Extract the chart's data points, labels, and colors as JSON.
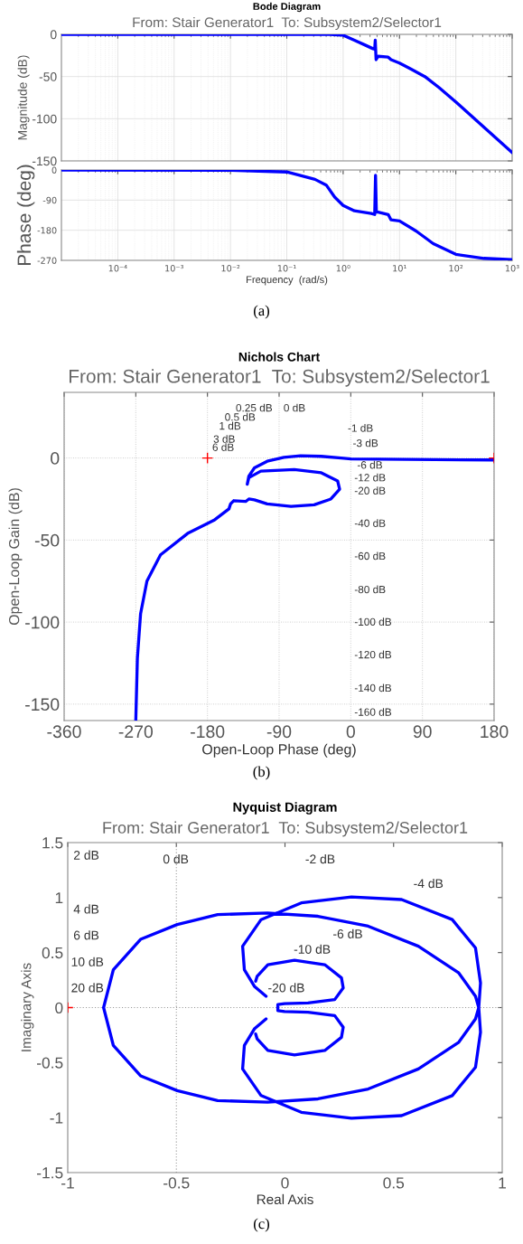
{
  "chart_data": [
    {
      "type": "line",
      "title": "Bode Diagram",
      "subtitle": "From: Stair Generator1  To: Subsystem2/Selector1",
      "ylabel": "Magnitude (dB)",
      "log": "x",
      "grid": true,
      "tick_labels": "y",
      "xlim": [
        1e-05,
        1000
      ],
      "xticks": [
        {
          "value": 0.0001,
          "label": null
        },
        {
          "value": 0.001,
          "label": null
        },
        {
          "value": 0.01,
          "label": null
        },
        {
          "value": 0.1,
          "label": null
        },
        {
          "value": 1,
          "label": null
        },
        {
          "value": 10,
          "label": null
        },
        {
          "value": 100,
          "label": null
        },
        {
          "value": 1000,
          "label": null
        }
      ],
      "ylim": [
        -150,
        0
      ],
      "yticks": [
        -150,
        -100,
        -50,
        0
      ],
      "series": [
        {
          "color": "#0000ff",
          "x": [
            1e-05,
            0.1,
            0.316,
            0.589,
            0.794,
            1,
            1.585,
            2.512,
            3.388,
            3.631,
            3.715,
            3.846,
            4.169,
            6.31,
            7.079,
            10,
            15.85,
            28.18,
            50.12,
            100,
            316.2,
            1000
          ],
          "values": [
            0,
            0,
            0,
            0,
            -0.5,
            -1,
            -7,
            -13,
            -17,
            -17.5,
            -7,
            -30,
            -26,
            -27,
            -30,
            -34,
            -41,
            -50,
            -63,
            -80,
            -110,
            -140
          ]
        }
      ]
    },
    {
      "type": "line",
      "xlabel": "Frequency  (rad/s)",
      "ylabel": "Phase (deg)",
      "log": "x",
      "grid": true,
      "xlim": [
        1e-05,
        1000
      ],
      "xticks": [
        {
          "value": 0.0001,
          "label": "10⁻⁴"
        },
        {
          "value": 0.001,
          "label": "10⁻³"
        },
        {
          "value": 0.01,
          "label": "10⁻²"
        },
        {
          "value": 0.1,
          "label": "10⁻¹"
        },
        {
          "value": 1,
          "label": "10⁰"
        },
        {
          "value": 10,
          "label": "10¹"
        },
        {
          "value": 100,
          "label": "10²"
        },
        {
          "value": 1000,
          "label": "10³"
        }
      ],
      "ylim": [
        -270,
        0
      ],
      "yticks": [
        -270,
        -180,
        -90,
        0
      ],
      "annotations": [
        "(a)"
      ],
      "series": [
        {
          "color": "#0000ff",
          "x": [
            1e-05,
            0.01,
            0.1,
            0.316,
            0.501,
            0.708,
            1,
            1.585,
            3.162,
            3.631,
            3.758,
            3.89,
            4.169,
            6.31,
            7.079,
            10,
            19.95,
            39.81,
            100,
            316.2,
            1000
          ],
          "values": [
            0,
            -1,
            -6,
            -28,
            -45,
            -81,
            -106,
            -122,
            -130,
            -133,
            -16,
            -125,
            -126,
            -133,
            -149,
            -152,
            -183,
            -220,
            -252,
            -264,
            -268
          ]
        }
      ]
    },
    {
      "type": "line",
      "title": "Nichols Chart",
      "subtitle": "From: Stair Generator1  To: Subsystem2/Selector1",
      "xlabel": "Open-Loop Phase (deg)",
      "ylabel": "Open-Loop Gain (dB)",
      "grid": true,
      "xlim": [
        -360,
        180
      ],
      "xticks": [
        -360,
        -270,
        -180,
        -90,
        0,
        90,
        180
      ],
      "ylim": [
        -160,
        40
      ],
      "yticks": [
        -150,
        -100,
        -50,
        0
      ],
      "annotations": [
        "0.25 dB",
        "0 dB",
        "0.5 dB",
        "1 dB",
        "3 dB",
        "6 dB",
        "-1 dB",
        "-3 dB",
        "-6 dB",
        "-12 dB",
        "-20 dB",
        "-40 dB",
        "-60 dB",
        "-80 dB",
        "-100 dB",
        "-120 dB",
        "-140 dB",
        "-160 dB",
        "(b)"
      ],
      "series": [
        {
          "color": "#0000ff",
          "x": [
            180,
            105,
            0.4,
            -12,
            -37,
            -63,
            -84,
            -105,
            -121,
            -128,
            -130,
            -128,
            -113,
            -71,
            -37,
            -16.5,
            -14,
            -25,
            -46,
            -75,
            -105,
            -121,
            -128,
            -132,
            -147,
            -151,
            -153,
            -172,
            -205,
            -239,
            -256,
            -264,
            -268,
            -270
          ],
          "values": [
            -1.2,
            -1,
            -0.6,
            0,
            1,
            1.4,
            0.4,
            -2,
            -6,
            -11,
            -16,
            -12,
            -8,
            -7,
            -9,
            -14,
            -19,
            -25,
            -28.5,
            -29.5,
            -28,
            -25.5,
            -25,
            -26.5,
            -26,
            -28,
            -31,
            -38,
            -46,
            -59,
            -75,
            -95,
            -122,
            -160
          ]
        },
        {
          "type": "scatter",
          "color": "#ff0000",
          "marker": "cross",
          "x": [
            -180,
            180
          ],
          "values": [
            0,
            0
          ]
        }
      ]
    },
    {
      "type": "line",
      "title": "Nyquist Diagram",
      "subtitle": "From: Stair Generator1  To: Subsystem2/Selector1",
      "xlabel": "Real Axis",
      "ylabel": "Imaginary Axis",
      "xlim": [
        -1,
        1
      ],
      "xticks": [
        -1,
        -0.5,
        0,
        0.5,
        1
      ],
      "ylim": [
        -1.5,
        1.5
      ],
      "yticks": [
        -1.5,
        -1,
        -0.5,
        0,
        0.5,
        1,
        1.5
      ],
      "ref_lines": [
        {
          "axis": "x",
          "value": -0.5,
          "label": "0 dB",
          "color": "#999999",
          "line_style": "dotted"
        },
        {
          "axis": "y",
          "value": 0,
          "color": "#999999",
          "line_style": "dotted"
        }
      ],
      "annotations": [
        "2 dB",
        "-2 dB",
        "-4 dB",
        "4 dB",
        "6 dB",
        "-6 dB",
        "10 dB",
        "-10 dB",
        "20 dB",
        "-20 dB",
        "(c)"
      ],
      "series": [
        {
          "color": "#0000ff",
          "x": [
            -0.135,
            -0.128,
            -0.079,
            0.044,
            0.183,
            0.26,
            0.268,
            0.229,
            0.106,
            -0.002,
            -0.033,
            -0.033,
            -0.033,
            -0.002,
            0.106,
            0.229,
            0.268,
            0.26,
            0.183,
            0.044,
            -0.079,
            -0.128,
            -0.135,
            null,
            -0.087,
            -0.141,
            -0.187,
            -0.195,
            -0.11,
            0.075,
            0.306,
            0.537,
            0.77,
            0.877,
            0.9,
            0.892,
            0.877,
            0.8,
            0.614,
            0.383,
            0.152,
            -0.08,
            -0.31,
            -0.496,
            -0.665,
            -0.79,
            -0.835,
            -0.79,
            -0.665,
            -0.496,
            -0.31,
            -0.08,
            0.152,
            0.383,
            0.614,
            0.8,
            0.877,
            0.892,
            0.9,
            0.877,
            0.77,
            0.537,
            0.306,
            0.075,
            -0.11,
            -0.195,
            -0.187,
            -0.141,
            -0.087
          ],
          "values": [
            0.24,
            0.285,
            0.39,
            0.43,
            0.39,
            0.27,
            0.179,
            0.073,
            0.042,
            0.036,
            0.027,
            0,
            -0.027,
            -0.036,
            -0.042,
            -0.073,
            -0.179,
            -0.27,
            -0.39,
            -0.43,
            -0.39,
            -0.285,
            -0.24,
            null,
            -0.103,
            -0.194,
            -0.345,
            -0.558,
            -0.8,
            -0.952,
            -1.006,
            -0.982,
            -0.8,
            -0.542,
            -0.224,
            0,
            0.103,
            0.315,
            0.558,
            0.74,
            0.83,
            0.86,
            0.845,
            0.755,
            0.62,
            0.345,
            0,
            -0.345,
            -0.62,
            -0.755,
            -0.845,
            -0.86,
            -0.83,
            -0.74,
            -0.558,
            -0.315,
            -0.103,
            0,
            0.224,
            0.542,
            0.8,
            0.982,
            1.006,
            0.952,
            0.8,
            0.558,
            0.345,
            0.194,
            0.103
          ]
        },
        {
          "type": "scatter",
          "color": "#ff0000",
          "marker": "cross",
          "x": [
            -1
          ],
          "values": [
            0
          ]
        }
      ]
    }
  ]
}
